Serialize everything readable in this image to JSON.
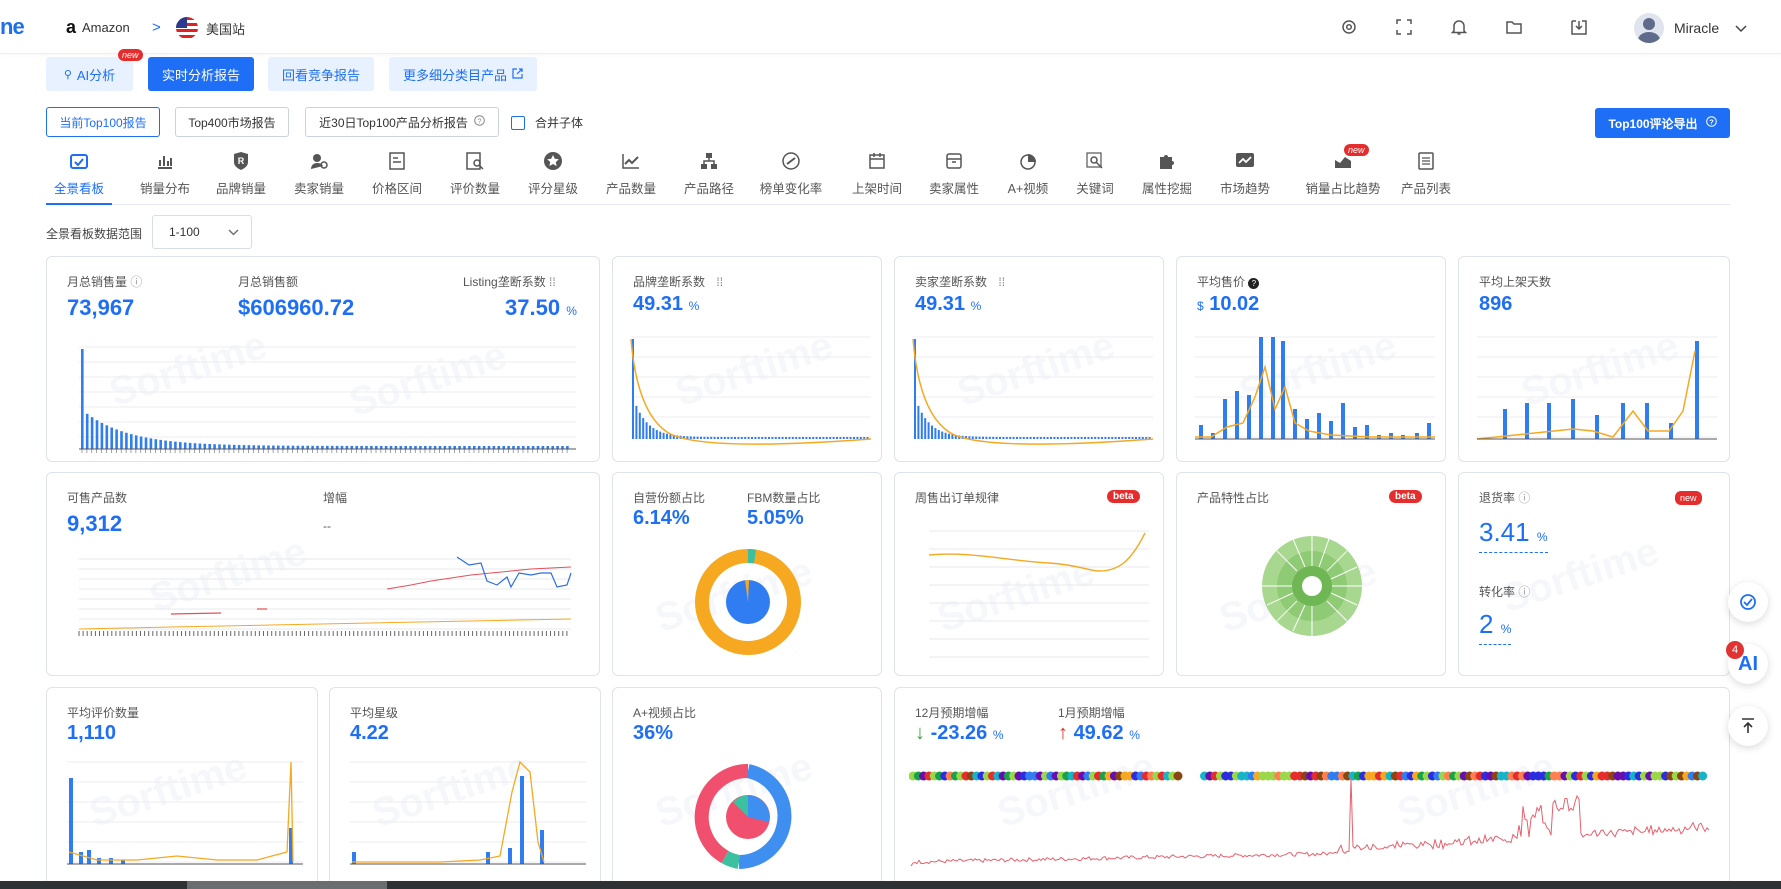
{
  "header": {
    "logo_fragment": "ne",
    "marketplace": "Amazon",
    "site": "美国站",
    "user_name": "Miracle"
  },
  "report_tabs": [
    {
      "label": "AI分析",
      "badge": "new"
    },
    {
      "label": "实时分析报告"
    },
    {
      "label": "回看竞争报告"
    },
    {
      "label": "更多细分类目产品"
    }
  ],
  "sub_buttons": {
    "current": "当前Top100报告",
    "top400": "Top400市场报告",
    "recent": "近30日Top100产品分析报告",
    "merge": "合并子体",
    "export": "Top100评论导出"
  },
  "nav": [
    {
      "label": "全景看板",
      "icon": "dashboard-icon"
    },
    {
      "label": "销量分布",
      "icon": "bar-chart-icon"
    },
    {
      "label": "品牌销量",
      "icon": "brand-icon"
    },
    {
      "label": "卖家销量",
      "icon": "seller-icon"
    },
    {
      "label": "价格区间",
      "icon": "price-icon"
    },
    {
      "label": "评价数量",
      "icon": "review-icon"
    },
    {
      "label": "评分星级",
      "icon": "star-icon"
    },
    {
      "label": "产品数量",
      "icon": "line-chart-icon"
    },
    {
      "label": "产品路径",
      "icon": "hierarchy-icon"
    },
    {
      "label": "榜单变化率",
      "icon": "rate-icon"
    },
    {
      "label": "上架时间",
      "icon": "calendar-icon"
    },
    {
      "label": "卖家属性",
      "icon": "store-icon"
    },
    {
      "label": "A+视频",
      "icon": "pie-icon"
    },
    {
      "label": "关键词",
      "icon": "keyword-icon"
    },
    {
      "label": "属性挖掘",
      "icon": "puzzle-icon"
    },
    {
      "label": "市场趋势",
      "icon": "trend-icon"
    },
    {
      "label": "销量占比趋势",
      "icon": "share-icon",
      "badge": "new"
    },
    {
      "label": "产品列表",
      "icon": "list-icon"
    }
  ],
  "range": {
    "label": "全景看板数据范围",
    "value": "1-100"
  },
  "watermark": "Sorftime",
  "cards": {
    "sales": {
      "label1": "月总销售量",
      "value1": "73,967",
      "label2": "月总销售额",
      "value2": "$606960.72",
      "label3": "Listing垄断系数",
      "value3": "37.50",
      "unit3": "%"
    },
    "brand": {
      "label": "品牌垄断系数",
      "value": "49.31",
      "unit": "%"
    },
    "seller": {
      "label": "卖家垄断系数",
      "value": "49.31",
      "unit": "%"
    },
    "avg_price": {
      "label": "平均售价",
      "currency": "$",
      "value": "10.02"
    },
    "avg_days": {
      "label": "平均上架天数",
      "value": "896"
    },
    "products": {
      "label1": "可售产品数",
      "value1": "9,312",
      "label2": "增幅",
      "value2": "--"
    },
    "self_share": {
      "label1": "自营份额占比",
      "value1": "6.14%",
      "label2": "FBM数量占比",
      "value2": "5.05%"
    },
    "weekly": {
      "label": "周售出订单规律",
      "badge": "beta"
    },
    "traits": {
      "label": "产品特性占比",
      "badge": "beta"
    },
    "return": {
      "label1": "退货率",
      "badge": "new",
      "value1": "3.41",
      "unit1": "%",
      "label2": "转化率",
      "value2": "2",
      "unit2": "%"
    },
    "avg_reviews": {
      "label": "平均评价数量",
      "value": "1,110"
    },
    "avg_star": {
      "label": "平均星级",
      "value": "4.22"
    },
    "aplus": {
      "label": "A+视频占比",
      "value": "36%"
    },
    "forecast": {
      "label1": "12月预期增幅",
      "value1": "-23.26",
      "unit1": "%",
      "label2": "1月预期增幅",
      "value2": "49.62",
      "unit2": "%"
    }
  },
  "float_badge": "4",
  "colors": {
    "accent": "#1e6ff5",
    "orange": "#f6a821",
    "red": "#e52d2d",
    "green": "#3aa63a"
  }
}
